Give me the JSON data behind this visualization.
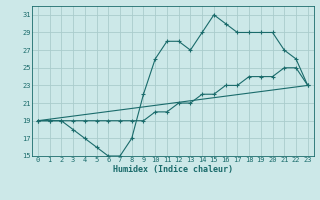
{
  "title": "",
  "xlabel": "Humidex (Indice chaleur)",
  "bg_color": "#cce8e8",
  "grid_color": "#aacccc",
  "line_color": "#1a6b6b",
  "line1_y": [
    19,
    19,
    19,
    18,
    17,
    16,
    15,
    15,
    17,
    22,
    26,
    28,
    28,
    27,
    29,
    31,
    30,
    29,
    29,
    29,
    29,
    27,
    26,
    23
  ],
  "line2_y": [
    19,
    19,
    19,
    19,
    19,
    19,
    19,
    19,
    19,
    19,
    20,
    20,
    21,
    21,
    22,
    22,
    23,
    23,
    24,
    24,
    24,
    25,
    25,
    23
  ],
  "line3_x": [
    0,
    23
  ],
  "line3_y": [
    19,
    23
  ],
  "ylim": [
    15,
    32
  ],
  "xlim": [
    -0.5,
    23.5
  ],
  "yticks": [
    15,
    17,
    19,
    21,
    23,
    25,
    27,
    29,
    31
  ],
  "xticks": [
    0,
    1,
    2,
    3,
    4,
    5,
    6,
    7,
    8,
    9,
    10,
    11,
    12,
    13,
    14,
    15,
    16,
    17,
    18,
    19,
    20,
    21,
    22,
    23
  ],
  "xlabel_fontsize": 6,
  "tick_fontsize": 5,
  "marker_size": 3,
  "linewidth": 0.8
}
